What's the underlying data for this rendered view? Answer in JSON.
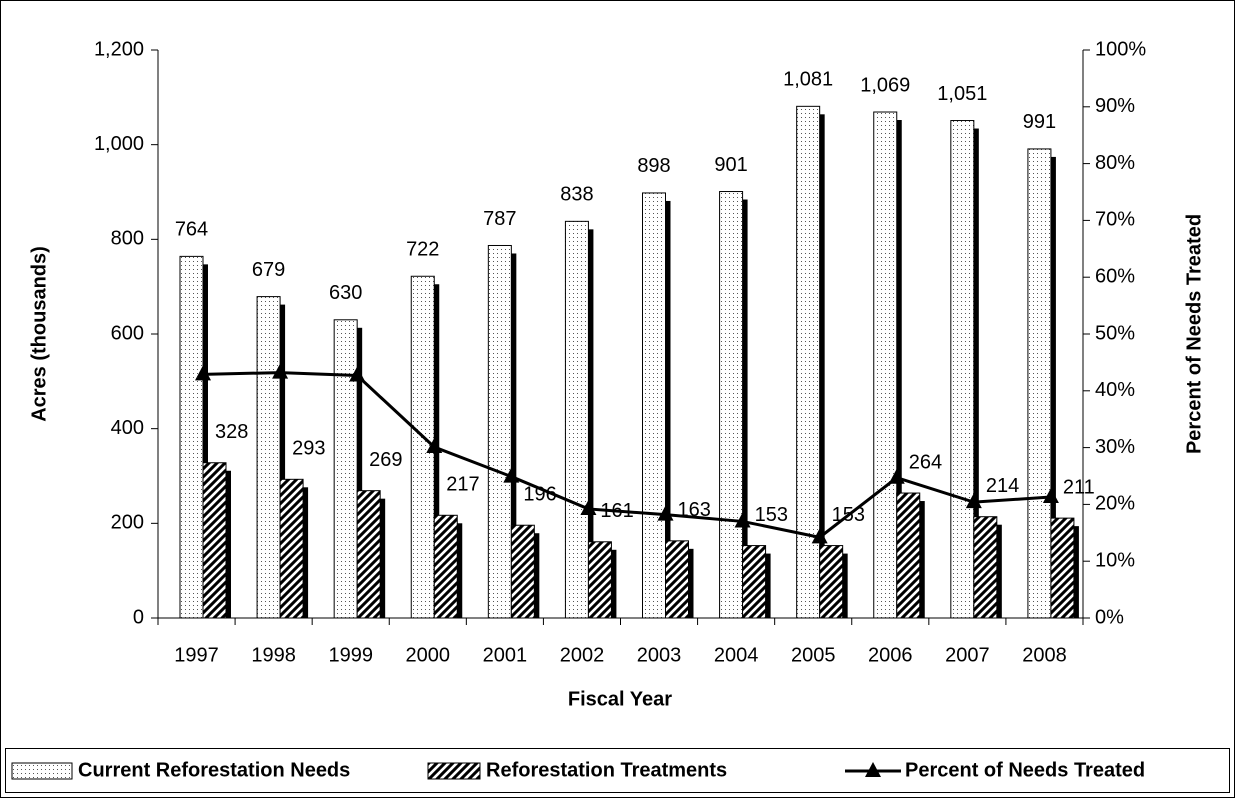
{
  "chart_data": {
    "type": "bar",
    "categories": [
      "1997",
      "1998",
      "1999",
      "2000",
      "2001",
      "2002",
      "2003",
      "2004",
      "2005",
      "2006",
      "2007",
      "2008"
    ],
    "series": [
      {
        "name": "Current Reforestation Needs",
        "color": "#ffffff",
        "values": [
          764,
          679,
          630,
          722,
          787,
          838,
          898,
          901,
          1081,
          1069,
          1051,
          991
        ],
        "value_labels": [
          "764",
          "679",
          "630",
          "722",
          "787",
          "838",
          "898",
          "901",
          "1,081",
          "1,069",
          "1,051",
          "991"
        ]
      },
      {
        "name": "Reforestation Treatments",
        "color": "#000000",
        "values": [
          328,
          293,
          269,
          217,
          196,
          161,
          163,
          153,
          153,
          264,
          214,
          211
        ]
      },
      {
        "name": "Percent of Needs Treated",
        "type": "line",
        "axis": "y2",
        "color": "#000000",
        "values": [
          42.9,
          43.2,
          42.7,
          30.1,
          24.9,
          19.2,
          18.2,
          17.0,
          14.2,
          24.7,
          20.4,
          21.3
        ]
      }
    ],
    "xlabel": "Fiscal Year",
    "ylabel": "Acres (thousands)",
    "y2label": "Percent of Needs Treated",
    "ylim": [
      0,
      1200
    ],
    "yticks": [
      0,
      200,
      400,
      600,
      800,
      {
        "value": 1000,
        "label": "1,000"
      },
      {
        "value": 1200,
        "label": "1,200"
      }
    ],
    "y2lim": [
      0,
      100
    ],
    "y2ticks": [
      {
        "value": 0,
        "label": "0%"
      },
      {
        "value": 10,
        "label": "10%"
      },
      {
        "value": 20,
        "label": "20%"
      },
      {
        "value": 30,
        "label": "30%"
      },
      {
        "value": 40,
        "label": "40%"
      },
      {
        "value": 50,
        "label": "50%"
      },
      {
        "value": 60,
        "label": "60%"
      },
      {
        "value": 70,
        "label": "70%"
      },
      {
        "value": 80,
        "label": "80%"
      },
      {
        "value": 90,
        "label": "90%"
      },
      {
        "value": 100,
        "label": "100%"
      }
    ],
    "grid": false,
    "legend": "bottom"
  }
}
